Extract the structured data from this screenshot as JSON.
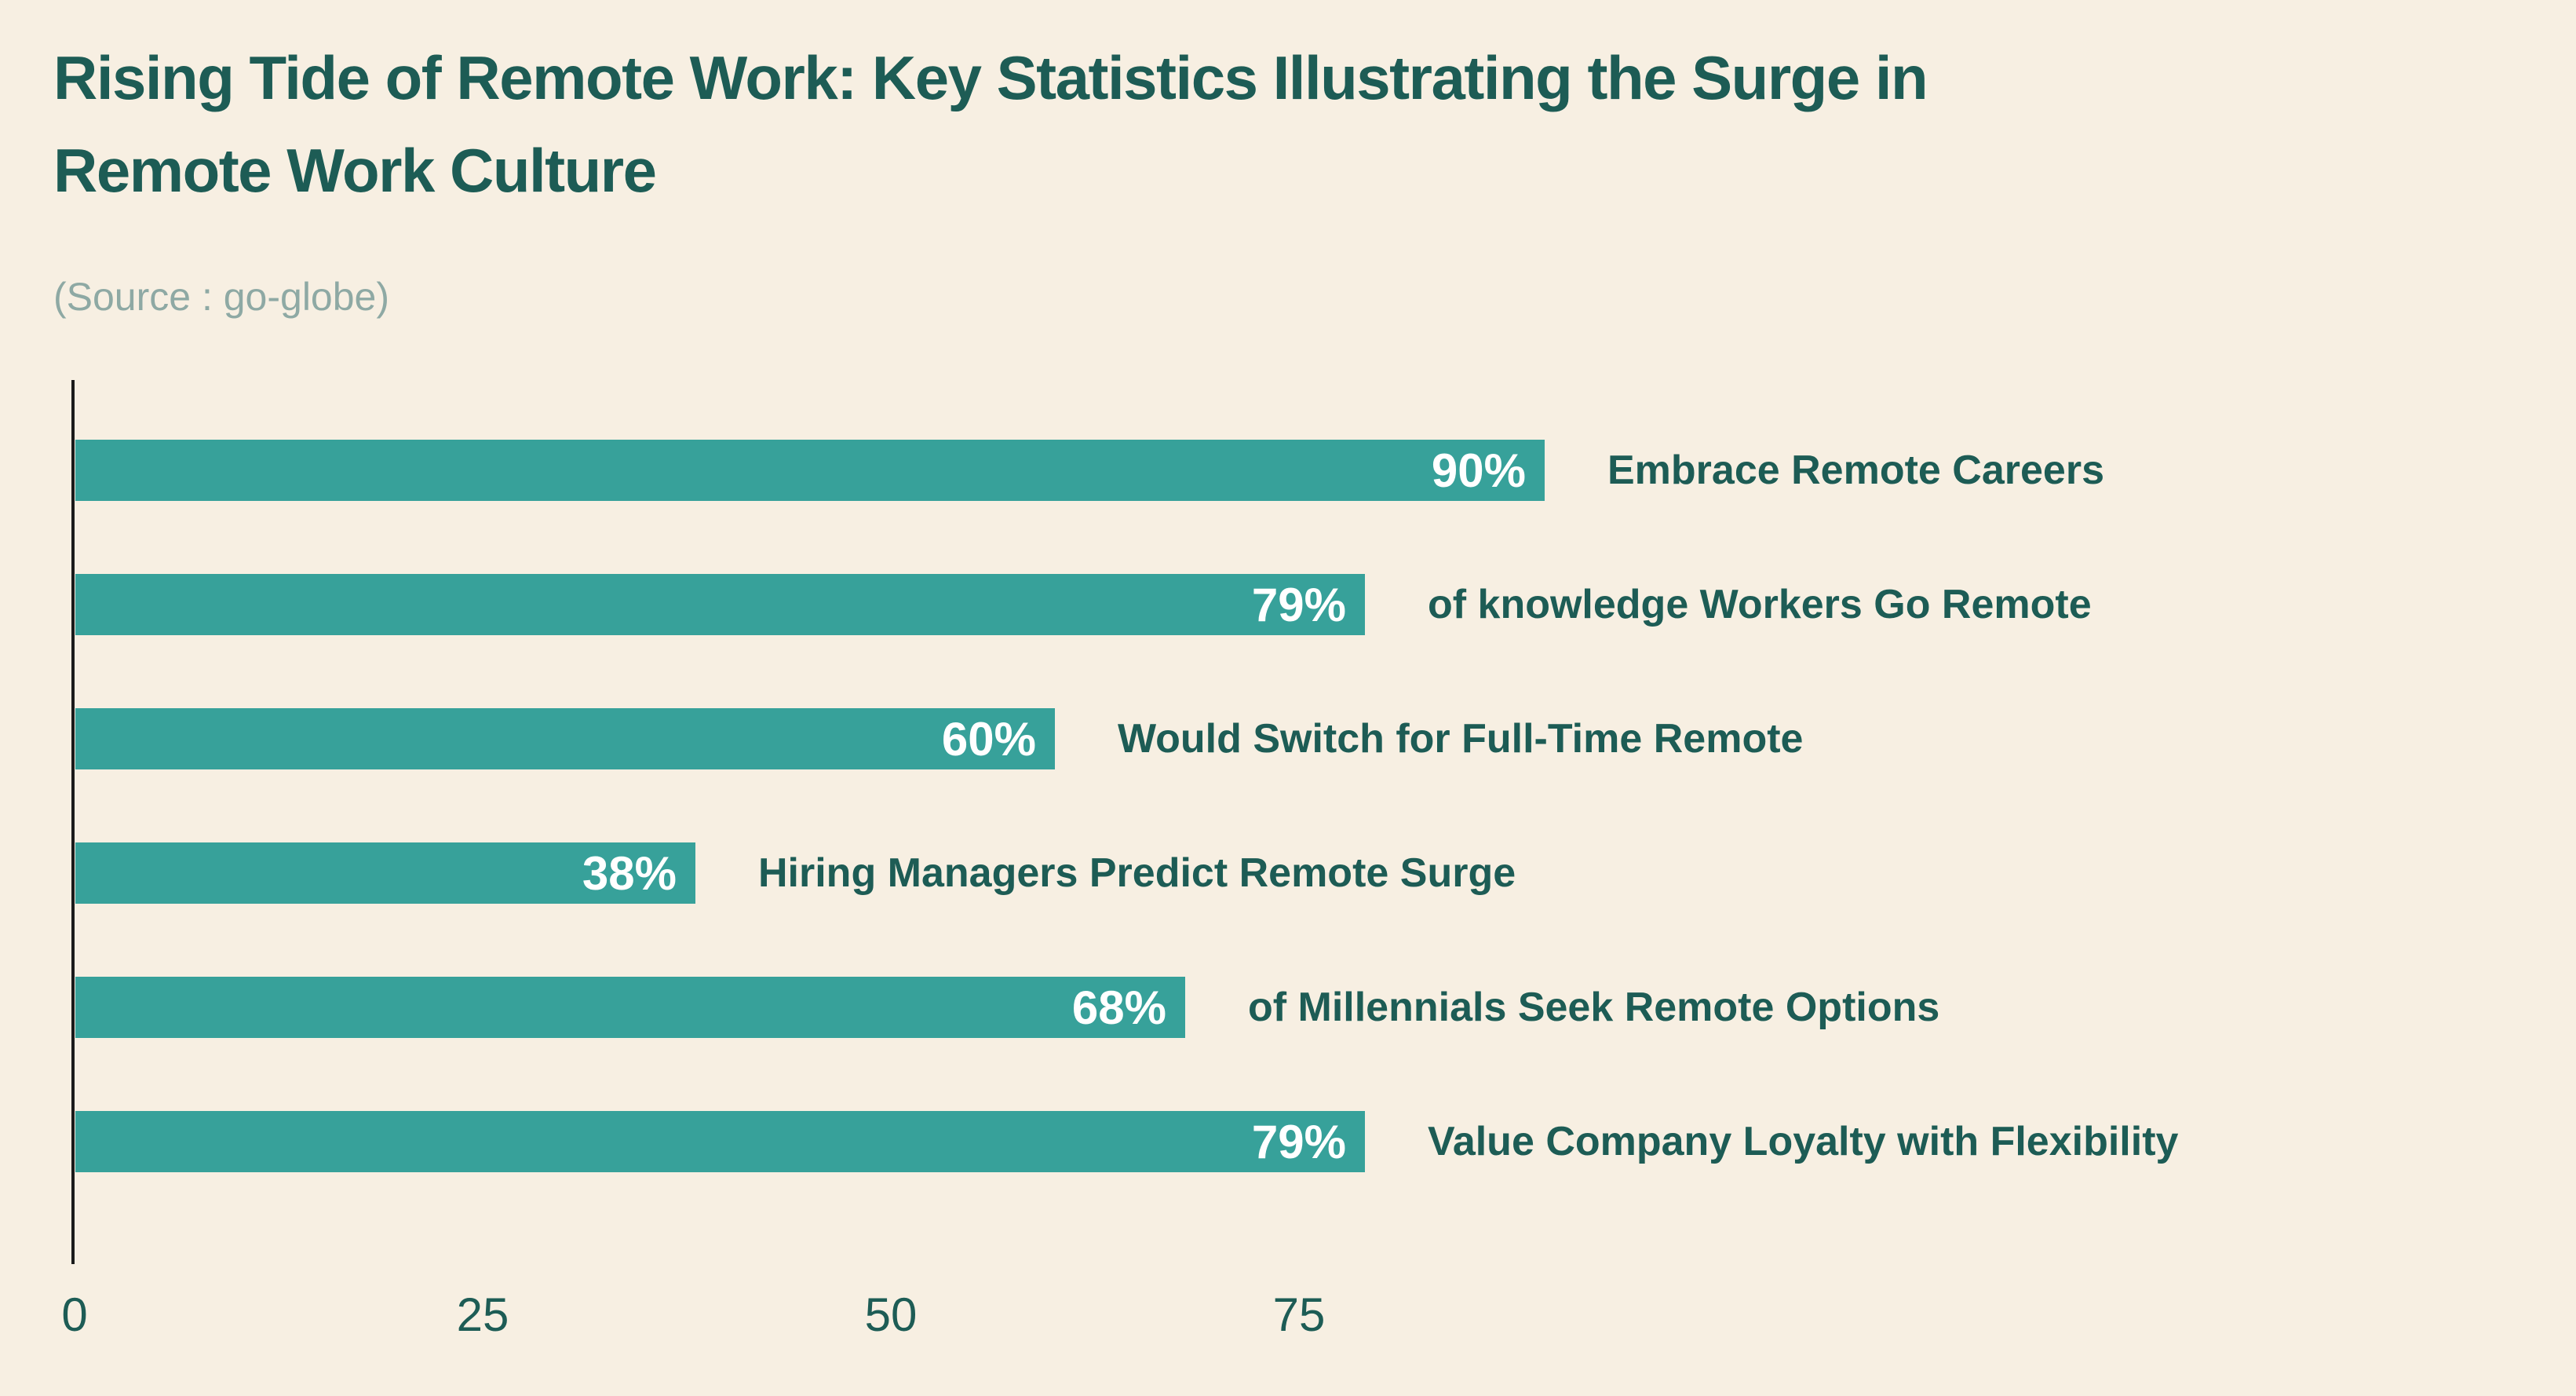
{
  "header": {
    "title": "Rising Tide of Remote Work: Key Statistics Illustrating the Surge in Remote Work Culture",
    "title_line1": "Rising Tide of Remote Work: Key Statistics Illustrating the Surge in",
    "title_line2": "Remote Work Culture",
    "source": "(Source : go-globe)"
  },
  "chart_data": {
    "type": "bar",
    "orientation": "horizontal",
    "title": "Rising Tide of Remote Work: Key Statistics Illustrating the Surge in Remote Work Culture",
    "subtitle": "(Source : go-globe)",
    "categories": [
      "Embrace Remote Careers",
      "of knowledge Workers Go Remote",
      "Would Switch for Full-Time Remote",
      "Hiring Managers Predict Remote Surge",
      "of Millennials Seek Remote Options",
      "Value Company Loyalty with Flexibility"
    ],
    "values": [
      90,
      79,
      60,
      38,
      68,
      79
    ],
    "value_labels": [
      "90%",
      "79%",
      "60%",
      "38%",
      "68%",
      "79%"
    ],
    "value_label_position": "inside-end",
    "category_label_position": "outside-end",
    "x_ticks": [
      0,
      25,
      50,
      75
    ],
    "xlim": [
      0,
      100
    ],
    "xlabel": "",
    "ylabel": "",
    "grid": false,
    "legend": "none",
    "colors": {
      "background": "#f7efe2",
      "bar": "#37a19a",
      "value_label": "#ffffff",
      "category_label": "#1d5c55",
      "title": "#1d5c55",
      "source": "#8ea9a4",
      "axis_line": "#1b1b1b",
      "tick_label": "#1d5c55"
    }
  }
}
